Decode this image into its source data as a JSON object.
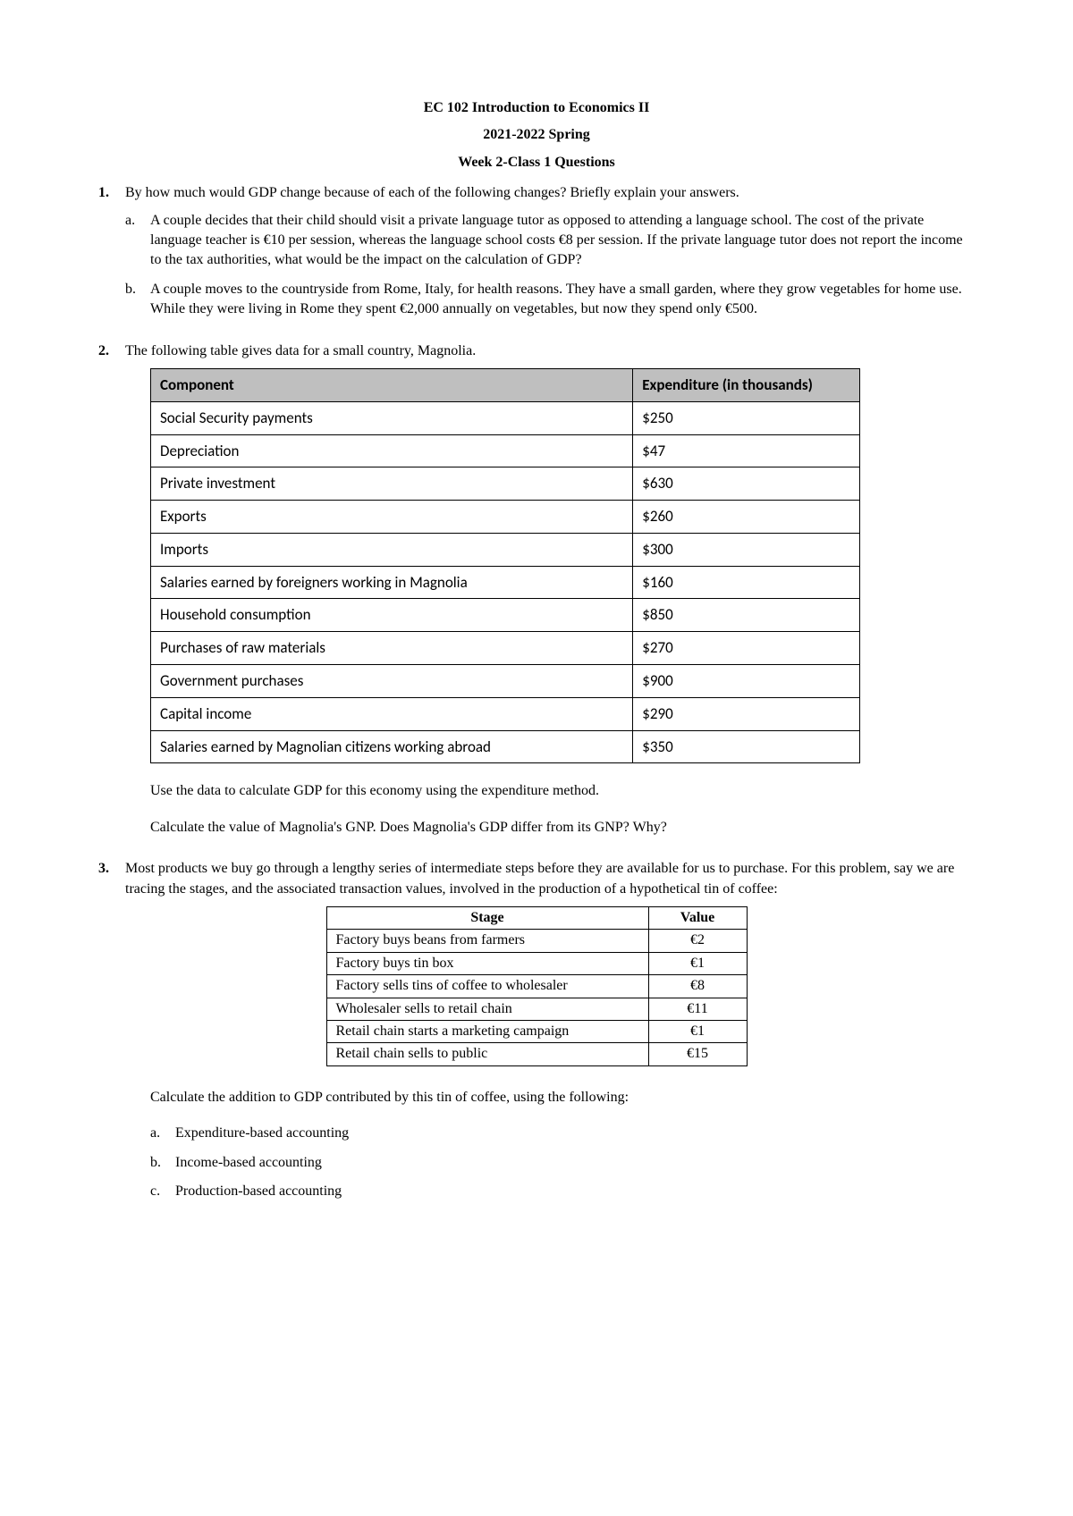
{
  "header": {
    "line1": "EC 102 Introduction to Economics II",
    "line2": "2021-2022 Spring",
    "line3": "Week 2-Class 1 Questions"
  },
  "q1": {
    "number": "1.",
    "text": "By how much would GDP change because of each of the following changes? Briefly explain your answers.",
    "a_letter": "a.",
    "a_text": "A couple decides that their child should visit a private language tutor as opposed to attending a language school. The cost of the private language teacher is €10 per session, whereas the language school costs €8 per session. If the private language tutor does not report the income to the tax authorities, what would be the impact on the calculation of GDP?",
    "b_letter": "b.",
    "b_text": "A couple moves to the countryside from Rome, Italy, for health reasons. They have a small garden, where they grow vegetables for home use. While they were living in Rome they spent €2,000 annually on vegetables, but now they spend only €500."
  },
  "q2": {
    "number": "2.",
    "text": "The following table gives data for a small country, Magnolia.",
    "table": {
      "header_component": "Component",
      "header_expenditure": "Expenditure (in thousands)",
      "rows": [
        {
          "component": "Social Security payments",
          "value": "$250"
        },
        {
          "component": "Depreciation",
          "value": "$47"
        },
        {
          "component": "Private investment",
          "value": "$630"
        },
        {
          "component": "Exports",
          "value": "$260"
        },
        {
          "component": "Imports",
          "value": "$300"
        },
        {
          "component": "Salaries earned by foreigners working in Magnolia",
          "value": "$160"
        },
        {
          "component": "Household consumption",
          "value": "$850"
        },
        {
          "component": "Purchases of raw materials",
          "value": "$270"
        },
        {
          "component": "Government purchases",
          "value": "$900"
        },
        {
          "component": "Capital income",
          "value": "$290"
        },
        {
          "component": "Salaries earned by Magnolian citizens working abroad",
          "value": "$350"
        }
      ]
    },
    "para1": "Use the data to calculate GDP for this economy using the expenditure method.",
    "para2": "Calculate the value of Magnolia's GNP. Does Magnolia's GDP differ from its GNP? Why?"
  },
  "q3": {
    "number": "3.",
    "text": "Most products we buy go through a lengthy series of intermediate steps before they are available for us to purchase. For this problem, say we are tracing the stages, and the associated transaction values, involved in the production of a hypothetical tin of coffee:",
    "table": {
      "header_stage": "Stage",
      "header_value": "Value",
      "rows": [
        {
          "stage": "Factory buys beans from farmers",
          "value": "€2"
        },
        {
          "stage": "Factory buys tin box",
          "value": "€1"
        },
        {
          "stage": "Factory sells tins of coffee to wholesaler",
          "value": "€8"
        },
        {
          "stage": "Wholesaler sells to retail chain",
          "value": "€11"
        },
        {
          "stage": "Retail chain starts a marketing campaign",
          "value": "€1"
        },
        {
          "stage": "Retail chain sells to public",
          "value": "€15"
        }
      ]
    },
    "para1": "Calculate the addition to GDP contributed by this tin of coffee, using the following:",
    "a_letter": "a.",
    "a_text": "Expenditure-based accounting",
    "b_letter": "b.",
    "b_text": "Income-based accounting",
    "c_letter": "c.",
    "c_text": "Production-based accounting"
  }
}
